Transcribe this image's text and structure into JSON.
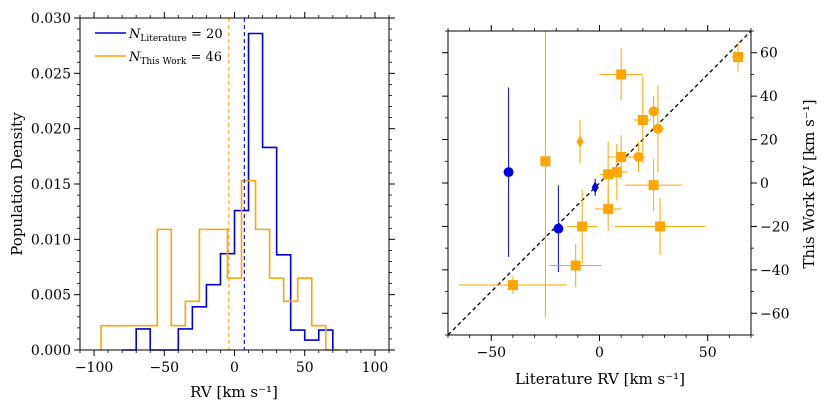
{
  "colors": {
    "literature": "#0000dd",
    "this_work": "#ffa500",
    "frame": "#000000"
  },
  "chart_data": [
    {
      "type": "histogram",
      "xlabel": "RV [km s⁻¹]",
      "ylabel": "Population Density",
      "xlim": [
        -110,
        110
      ],
      "ylim": [
        0,
        0.03
      ],
      "xticks": [
        -100,
        -50,
        0,
        50,
        100
      ],
      "xtick_labels": [
        "−100",
        "−50",
        "0",
        "50",
        "100"
      ],
      "yticks": [
        0,
        0.005,
        0.01,
        0.015,
        0.02,
        0.025,
        0.03
      ],
      "ytick_labels": [
        "0.000",
        "0.005",
        "0.010",
        "0.015",
        "0.020",
        "0.025",
        "0.030"
      ],
      "series": [
        {
          "name": "Literature",
          "legend_text": "N",
          "legend_sub": "Literature",
          "legend_rest": " = 20",
          "bin_edges": [
            -80,
            -70,
            -60,
            -50,
            -40,
            -30,
            -20,
            -10,
            0,
            10,
            20,
            30,
            40,
            50,
            60,
            70
          ],
          "values": [
            0,
            0.0019,
            0,
            0,
            0.0019,
            0.0039,
            0.0059,
            0.0087,
            0.0126,
            0.0286,
            0.0183,
            0.0086,
            0.0018,
            0.0009,
            0.0018
          ],
          "median": 7
        },
        {
          "name": "This Work",
          "legend_text": "N",
          "legend_sub": "This Work",
          "legend_rest": " = 46",
          "bin_edges": [
            -95,
            -85,
            -75,
            -65,
            -55,
            -45,
            -35,
            -25,
            -15,
            -5,
            5,
            15,
            25,
            35,
            45,
            55,
            65,
            75
          ],
          "values": [
            0.0022,
            0.0022,
            0.0022,
            0.0022,
            0.0109,
            0.0022,
            0.0044,
            0.0109,
            0.0109,
            0.0065,
            0.0153,
            0.0109,
            0.0065,
            0.0044,
            0.0065,
            0.0022,
            0
          ],
          "median": -4
        }
      ]
    },
    {
      "type": "scatter",
      "xlabel": "Literature RV [km s⁻¹]",
      "ylabel": "This Work RV [km s⁻¹]",
      "xlim": [
        -70,
        70
      ],
      "ylim": [
        -70,
        70
      ],
      "xticks": [
        -50,
        0,
        50
      ],
      "xtick_labels": [
        "−50",
        "0",
        "50"
      ],
      "yticks": [
        -60,
        -40,
        -20,
        0,
        20,
        40,
        60
      ],
      "ytick_labels": [
        "−60",
        "−40",
        "−20",
        "0",
        "20",
        "40",
        "60"
      ],
      "one_to_one_line": true,
      "points": [
        {
          "x": -42,
          "y": 5,
          "xerr": 1,
          "yerr": 39,
          "marker": "circle",
          "series": "Literature"
        },
        {
          "x": -19,
          "y": -21,
          "xerr": 1,
          "yerr": 20,
          "marker": "circle",
          "series": "Literature"
        },
        {
          "x": -2,
          "y": -2,
          "xerr": 1,
          "yerr": 4,
          "marker": "diamond",
          "series": "Literature"
        },
        {
          "x": -40,
          "y": -47,
          "xerr": 25,
          "yerr": 4,
          "marker": "square",
          "series": "This Work"
        },
        {
          "x": -25,
          "y": 10,
          "xerr": 1,
          "yerr": 72,
          "marker": "square",
          "series": "This Work"
        },
        {
          "x": -11,
          "y": -38,
          "xerr": 12,
          "yerr": 10,
          "marker": "square",
          "series": "This Work"
        },
        {
          "x": -8,
          "y": -20,
          "xerr": 7,
          "yerr": 17,
          "marker": "square",
          "series": "This Work"
        },
        {
          "x": -9,
          "y": 19,
          "xerr": 1,
          "yerr": 10,
          "marker": "diamond",
          "series": "This Work"
        },
        {
          "x": 4,
          "y": 4,
          "xerr": 4,
          "yerr": 15,
          "marker": "square",
          "series": "This Work"
        },
        {
          "x": 4,
          "y": -12,
          "xerr": 6,
          "yerr": 10,
          "marker": "square",
          "series": "This Work"
        },
        {
          "x": 8,
          "y": 5,
          "xerr": 5,
          "yerr": 13,
          "marker": "square",
          "series": "This Work"
        },
        {
          "x": 10,
          "y": 12,
          "xerr": 6,
          "yerr": 10,
          "marker": "square",
          "series": "This Work"
        },
        {
          "x": 10,
          "y": 50,
          "xerr": 10,
          "yerr": 12,
          "marker": "square",
          "series": "This Work"
        },
        {
          "x": 18,
          "y": 12,
          "xerr": 3,
          "yerr": 7,
          "marker": "circle",
          "series": "This Work"
        },
        {
          "x": 20,
          "y": 29,
          "xerr": 4,
          "yerr": 20,
          "marker": "square",
          "series": "This Work"
        },
        {
          "x": 25,
          "y": -1,
          "xerr": 13,
          "yerr": 12,
          "marker": "square",
          "series": "This Work"
        },
        {
          "x": 25,
          "y": 33,
          "xerr": 1,
          "yerr": 7,
          "marker": "circle",
          "series": "This Work"
        },
        {
          "x": 27,
          "y": 25,
          "xerr": 3,
          "yerr": 20,
          "marker": "circle",
          "series": "This Work"
        },
        {
          "x": 28,
          "y": -20,
          "xerr": 21,
          "yerr": 13,
          "marker": "square",
          "series": "This Work"
        },
        {
          "x": 64,
          "y": 58,
          "xerr": 3,
          "yerr": 7,
          "marker": "square",
          "series": "This Work"
        }
      ]
    }
  ]
}
